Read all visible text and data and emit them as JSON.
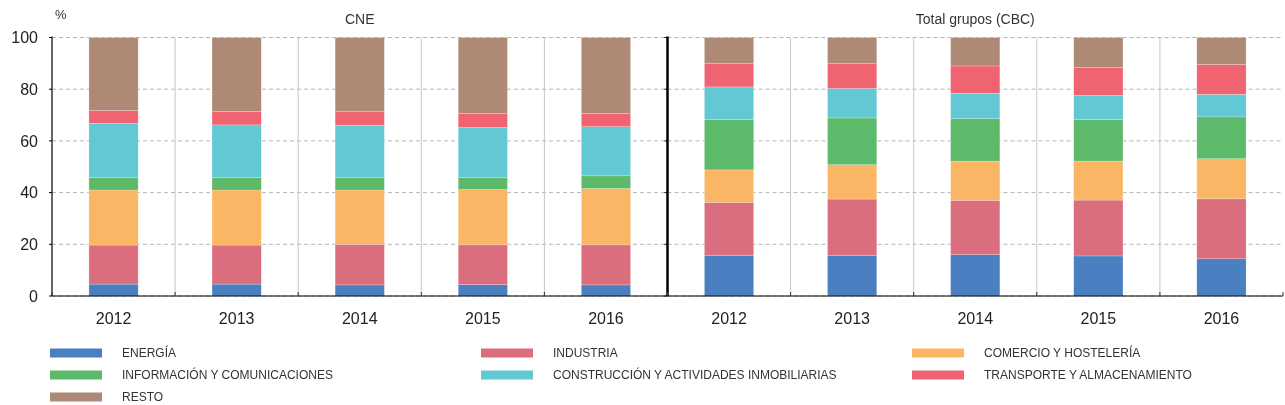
{
  "chart_data": [
    {
      "type": "bar",
      "title": "CNE",
      "ylabel": "%",
      "stacked": true,
      "categories": [
        "2012",
        "2013",
        "2014",
        "2015",
        "2016"
      ],
      "ylim": [
        0,
        100
      ],
      "yticks": [
        0,
        20,
        40,
        60,
        80,
        100
      ],
      "grid": true,
      "legend": "bottom",
      "series": [
        {
          "name": "ENERGÍA",
          "color": "#4a7fc1",
          "values": [
            4.6,
            4.6,
            4.3,
            4.4,
            4.3
          ]
        },
        {
          "name": "INDUSTRIA",
          "color": "#db6e7e",
          "values": [
            15.1,
            15.1,
            15.7,
            15.4,
            15.5
          ]
        },
        {
          "name": "COMERCIO Y HOSTELERÍA",
          "color": "#fbb665",
          "values": [
            21.3,
            21.3,
            21.0,
            21.4,
            21.8
          ]
        },
        {
          "name": "INFORMACIÓN Y COMUNICACIONES",
          "color": "#5dba6a",
          "values": [
            4.9,
            4.9,
            4.9,
            4.7,
            4.9
          ]
        },
        {
          "name": "CONSTRUCCIÓN Y ACTIVIDADES INMOBILIARIAS",
          "color": "#62c8d4",
          "values": [
            20.9,
            20.3,
            20.1,
            19.3,
            19.0
          ]
        },
        {
          "name": "TRANSPORTE Y ALMACENAMIENTO",
          "color": "#f06472",
          "values": [
            5.0,
            5.2,
            5.3,
            5.4,
            5.1
          ]
        },
        {
          "name": "RESTO",
          "color": "#ae8a76",
          "values": [
            28.2,
            28.6,
            28.7,
            29.4,
            29.4
          ]
        }
      ]
    },
    {
      "type": "bar",
      "title": "Total grupos (CBC)",
      "stacked": true,
      "categories": [
        "2012",
        "2013",
        "2014",
        "2015",
        "2016"
      ],
      "ylim": [
        0,
        100
      ],
      "yticks": [
        0,
        20,
        40,
        60,
        80,
        100
      ],
      "grid": true,
      "tick_labels": "x",
      "series": [
        {
          "name": "ENERGÍA",
          "color": "#4a7fc1",
          "values": [
            15.6,
            15.6,
            16.0,
            15.5,
            14.4
          ]
        },
        {
          "name": "INDUSTRIA",
          "color": "#db6e7e",
          "values": [
            20.6,
            21.9,
            21.0,
            21.6,
            23.2
          ]
        },
        {
          "name": "COMERCIO Y HOSTELERÍA",
          "color": "#fbb665",
          "values": [
            12.6,
            13.3,
            15.1,
            15.1,
            15.5
          ]
        },
        {
          "name": "INFORMACIÓN Y COMUNICACIONES",
          "color": "#5dba6a",
          "values": [
            19.4,
            18.1,
            16.5,
            16.1,
            16.2
          ]
        },
        {
          "name": "CONSTRUCCIÓN Y ACTIVIDADES INMOBILIARIAS",
          "color": "#62c8d4",
          "values": [
            12.7,
            11.4,
            9.8,
            9.3,
            8.7
          ]
        },
        {
          "name": "TRANSPORTE Y ALMACENAMIENTO",
          "color": "#f06472",
          "values": [
            9.0,
            9.6,
            10.6,
            10.8,
            11.6
          ]
        },
        {
          "name": "RESTO",
          "color": "#ae8a76",
          "values": [
            10.1,
            10.1,
            11.0,
            11.6,
            10.4
          ]
        }
      ]
    }
  ]
}
